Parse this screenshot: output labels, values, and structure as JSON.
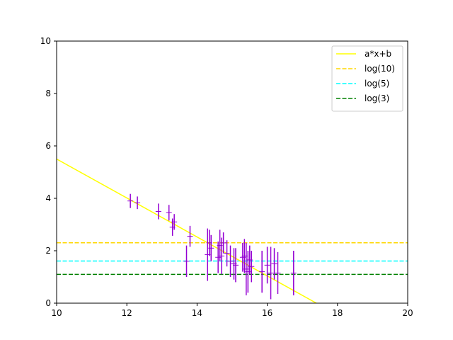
{
  "chart_data": {
    "type": "scatter",
    "title": "",
    "xlabel": "",
    "ylabel": "",
    "xlim": [
      10,
      20
    ],
    "ylim": [
      0,
      10
    ],
    "grid": false,
    "legend_position": "top-right",
    "x_ticks": [
      "10",
      "12",
      "14",
      "16",
      "18",
      "20"
    ],
    "y_ticks": [
      "0",
      "2",
      "4",
      "6",
      "8",
      "10"
    ],
    "fit_line": {
      "name": "a*x+b",
      "color": "#ffff00",
      "x": [
        10,
        17.4
      ],
      "y": [
        5.5,
        0.0
      ]
    },
    "hlines": [
      {
        "name": "log(10)",
        "y": 2.302585,
        "color": "#ffd700",
        "style": "dashed"
      },
      {
        "name": "log(5)",
        "y": 1.609438,
        "color": "#00ffff",
        "style": "dashed"
      },
      {
        "name": "log(3)",
        "y": 1.098612,
        "color": "#008000",
        "style": "dashed"
      }
    ],
    "errorbar_series": {
      "color": "#9400d3",
      "points": [
        {
          "x": 12.1,
          "y": 3.9,
          "err": 0.27
        },
        {
          "x": 12.3,
          "y": 3.83,
          "err": 0.24
        },
        {
          "x": 12.9,
          "y": 3.5,
          "err": 0.3
        },
        {
          "x": 13.2,
          "y": 3.45,
          "err": 0.3
        },
        {
          "x": 13.3,
          "y": 2.9,
          "err": 0.33
        },
        {
          "x": 13.35,
          "y": 3.1,
          "err": 0.3
        },
        {
          "x": 13.7,
          "y": 1.6,
          "err": 0.6
        },
        {
          "x": 13.8,
          "y": 2.55,
          "err": 0.4
        },
        {
          "x": 14.3,
          "y": 1.85,
          "err": 1.0
        },
        {
          "x": 14.35,
          "y": 2.3,
          "err": 0.5
        },
        {
          "x": 14.4,
          "y": 2.1,
          "err": 0.5
        },
        {
          "x": 14.6,
          "y": 1.75,
          "err": 0.6
        },
        {
          "x": 14.65,
          "y": 2.2,
          "err": 0.6
        },
        {
          "x": 14.7,
          "y": 1.8,
          "err": 0.7
        },
        {
          "x": 14.75,
          "y": 2.3,
          "err": 0.4
        },
        {
          "x": 14.85,
          "y": 1.9,
          "err": 0.5
        },
        {
          "x": 14.95,
          "y": 1.6,
          "err": 0.6
        },
        {
          "x": 15.05,
          "y": 1.5,
          "err": 0.6
        },
        {
          "x": 15.1,
          "y": 1.45,
          "err": 0.65
        },
        {
          "x": 15.3,
          "y": 1.75,
          "err": 0.55
        },
        {
          "x": 15.35,
          "y": 1.8,
          "err": 0.65
        },
        {
          "x": 15.4,
          "y": 1.3,
          "err": 1.0
        },
        {
          "x": 15.45,
          "y": 1.2,
          "err": 0.8
        },
        {
          "x": 15.5,
          "y": 1.65,
          "err": 0.55
        },
        {
          "x": 15.55,
          "y": 1.4,
          "err": 0.6
        },
        {
          "x": 15.85,
          "y": 1.2,
          "err": 0.8
        },
        {
          "x": 16.0,
          "y": 1.45,
          "err": 0.7
        },
        {
          "x": 16.1,
          "y": 1.15,
          "err": 1.0
        },
        {
          "x": 16.2,
          "y": 1.5,
          "err": 0.6
        },
        {
          "x": 16.3,
          "y": 1.15,
          "err": 0.8
        },
        {
          "x": 16.75,
          "y": 1.15,
          "err": 0.85
        }
      ]
    }
  }
}
